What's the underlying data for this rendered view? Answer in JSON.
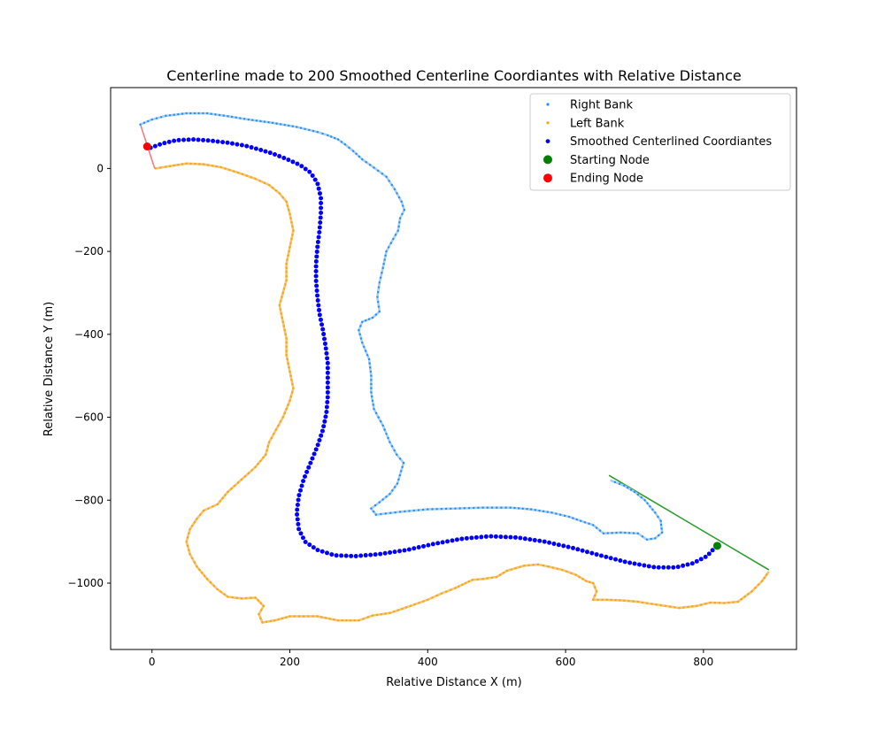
{
  "chart_data": {
    "type": "scatter",
    "title": "Centerline made to 200 Smoothed Centerline Coordiantes with Relative Distance",
    "xlabel": "Relative Distance X (m)",
    "ylabel": "Relative Distance Y (m)",
    "xlim": [
      -60,
      935
    ],
    "ylim": [
      -1160,
      195
    ],
    "x_ticks": [
      0,
      200,
      400,
      600,
      800
    ],
    "y_ticks": [
      0,
      -200,
      -400,
      -600,
      -800,
      -1000
    ],
    "grid": false,
    "legend_position": "top-right",
    "legend": [
      {
        "label": "Right Bank",
        "color": "#1e90ff",
        "marker": "small-dot"
      },
      {
        "label": "Left Bank",
        "color": "#ffa500",
        "marker": "small-dot"
      },
      {
        "label": "Smoothed Centerlined Coordiantes",
        "color": "#0000ff",
        "marker": "dot"
      },
      {
        "label": "Starting Node",
        "color": "#008000",
        "marker": "large-dot"
      },
      {
        "label": "Ending Node",
        "color": "#ff0000",
        "marker": "large-dot"
      }
    ],
    "series": [
      {
        "name": "Right Bank",
        "color": "#1e90ff",
        "line_color": "#a8cdf0",
        "points": [
          [
            -17,
            106
          ],
          [
            0,
            118
          ],
          [
            20,
            127
          ],
          [
            50,
            133
          ],
          [
            80,
            133
          ],
          [
            110,
            126
          ],
          [
            140,
            118
          ],
          [
            175,
            110
          ],
          [
            210,
            100
          ],
          [
            240,
            88
          ],
          [
            255,
            80
          ],
          [
            270,
            70
          ],
          [
            280,
            58
          ],
          [
            292,
            42
          ],
          [
            305,
            22
          ],
          [
            322,
            2
          ],
          [
            340,
            -20
          ],
          [
            352,
            -50
          ],
          [
            362,
            -80
          ],
          [
            366,
            -100
          ],
          [
            360,
            -120
          ],
          [
            357,
            -150
          ],
          [
            350,
            -170
          ],
          [
            340,
            -200
          ],
          [
            335,
            -240
          ],
          [
            330,
            -275
          ],
          [
            327,
            -310
          ],
          [
            330,
            -345
          ],
          [
            320,
            -360
          ],
          [
            305,
            -370
          ],
          [
            300,
            -390
          ],
          [
            305,
            -420
          ],
          [
            315,
            -460
          ],
          [
            318,
            -500
          ],
          [
            318,
            -540
          ],
          [
            322,
            -580
          ],
          [
            335,
            -620
          ],
          [
            345,
            -660
          ],
          [
            355,
            -690
          ],
          [
            365,
            -710
          ],
          [
            356,
            -760
          ],
          [
            345,
            -785
          ],
          [
            330,
            -805
          ],
          [
            318,
            -820
          ],
          [
            325,
            -835
          ],
          [
            360,
            -828
          ],
          [
            400,
            -822
          ],
          [
            440,
            -820
          ],
          [
            480,
            -818
          ],
          [
            520,
            -818
          ],
          [
            550,
            -822
          ],
          [
            580,
            -830
          ],
          [
            605,
            -840
          ],
          [
            622,
            -850
          ],
          [
            640,
            -860
          ],
          [
            655,
            -880
          ],
          [
            680,
            -878
          ],
          [
            705,
            -880
          ],
          [
            718,
            -895
          ],
          [
            730,
            -892
          ],
          [
            740,
            -878
          ],
          [
            738,
            -850
          ],
          [
            730,
            -830
          ],
          [
            715,
            -800
          ],
          [
            700,
            -780
          ],
          [
            685,
            -765
          ],
          [
            665,
            -752
          ]
        ]
      },
      {
        "name": "Left Bank",
        "color": "#ffa500",
        "line_color": "#f2c37a",
        "points": [
          [
            5,
            0
          ],
          [
            20,
            4
          ],
          [
            50,
            12
          ],
          [
            75,
            10
          ],
          [
            100,
            3
          ],
          [
            125,
            -10
          ],
          [
            150,
            -25
          ],
          [
            170,
            -40
          ],
          [
            185,
            -60
          ],
          [
            195,
            -80
          ],
          [
            200,
            -110
          ],
          [
            205,
            -150
          ],
          [
            200,
            -190
          ],
          [
            195,
            -230
          ],
          [
            195,
            -270
          ],
          [
            190,
            -300
          ],
          [
            185,
            -330
          ],
          [
            190,
            -370
          ],
          [
            195,
            -410
          ],
          [
            195,
            -450
          ],
          [
            200,
            -490
          ],
          [
            205,
            -530
          ],
          [
            200,
            -560
          ],
          [
            190,
            -600
          ],
          [
            180,
            -630
          ],
          [
            170,
            -660
          ],
          [
            165,
            -690
          ],
          [
            150,
            -720
          ],
          [
            130,
            -750
          ],
          [
            110,
            -780
          ],
          [
            95,
            -810
          ],
          [
            75,
            -825
          ],
          [
            65,
            -845
          ],
          [
            55,
            -870
          ],
          [
            50,
            -900
          ],
          [
            55,
            -930
          ],
          [
            65,
            -960
          ],
          [
            80,
            -990
          ],
          [
            95,
            -1015
          ],
          [
            110,
            -1033
          ],
          [
            130,
            -1037
          ],
          [
            150,
            -1035
          ],
          [
            162,
            -1055
          ],
          [
            155,
            -1075
          ],
          [
            160,
            -1095
          ],
          [
            178,
            -1090
          ],
          [
            200,
            -1080
          ],
          [
            240,
            -1080
          ],
          [
            270,
            -1090
          ],
          [
            300,
            -1090
          ],
          [
            320,
            -1078
          ],
          [
            345,
            -1072
          ],
          [
            375,
            -1055
          ],
          [
            400,
            -1040
          ],
          [
            420,
            -1025
          ],
          [
            440,
            -1012
          ],
          [
            455,
            -1000
          ],
          [
            465,
            -992
          ],
          [
            480,
            -990
          ],
          [
            500,
            -985
          ],
          [
            515,
            -970
          ],
          [
            540,
            -958
          ],
          [
            560,
            -955
          ],
          [
            575,
            -960
          ],
          [
            595,
            -968
          ],
          [
            615,
            -980
          ],
          [
            630,
            -995
          ],
          [
            640,
            -1000
          ],
          [
            645,
            -1020
          ],
          [
            640,
            -1040
          ],
          [
            660,
            -1040
          ],
          [
            685,
            -1042
          ],
          [
            705,
            -1045
          ],
          [
            725,
            -1050
          ],
          [
            745,
            -1055
          ],
          [
            765,
            -1060
          ],
          [
            790,
            -1055
          ],
          [
            810,
            -1047
          ],
          [
            830,
            -1048
          ],
          [
            850,
            -1045
          ],
          [
            870,
            -1020
          ],
          [
            885,
            -995
          ],
          [
            895,
            -972
          ]
        ]
      },
      {
        "name": "Smoothed Centerlined Coordiantes",
        "color": "#0000ff",
        "points": [
          [
            -2,
            50
          ],
          [
            15,
            60
          ],
          [
            35,
            68
          ],
          [
            60,
            70
          ],
          [
            85,
            67
          ],
          [
            110,
            62
          ],
          [
            135,
            55
          ],
          [
            155,
            46
          ],
          [
            175,
            36
          ],
          [
            195,
            23
          ],
          [
            215,
            8
          ],
          [
            230,
            -10
          ],
          [
            240,
            -35
          ],
          [
            245,
            -70
          ],
          [
            245,
            -110
          ],
          [
            243,
            -150
          ],
          [
            240,
            -190
          ],
          [
            238,
            -230
          ],
          [
            238,
            -270
          ],
          [
            240,
            -310
          ],
          [
            243,
            -350
          ],
          [
            248,
            -390
          ],
          [
            252,
            -430
          ],
          [
            255,
            -470
          ],
          [
            255,
            -510
          ],
          [
            255,
            -550
          ],
          [
            253,
            -590
          ],
          [
            248,
            -630
          ],
          [
            240,
            -670
          ],
          [
            230,
            -710
          ],
          [
            220,
            -750
          ],
          [
            213,
            -790
          ],
          [
            210,
            -830
          ],
          [
            213,
            -870
          ],
          [
            222,
            -900
          ],
          [
            240,
            -920
          ],
          [
            265,
            -933
          ],
          [
            295,
            -935
          ],
          [
            330,
            -930
          ],
          [
            370,
            -920
          ],
          [
            410,
            -905
          ],
          [
            450,
            -893
          ],
          [
            490,
            -887
          ],
          [
            530,
            -890
          ],
          [
            570,
            -900
          ],
          [
            610,
            -915
          ],
          [
            650,
            -933
          ],
          [
            690,
            -950
          ],
          [
            730,
            -962
          ],
          [
            760,
            -962
          ],
          [
            785,
            -952
          ],
          [
            805,
            -935
          ],
          [
            818,
            -912
          ]
        ],
        "count": 200
      },
      {
        "name": "Starting Node",
        "color": "#008000",
        "points": [
          [
            820,
            -910
          ]
        ]
      },
      {
        "name": "Ending Node",
        "color": "#ff0000",
        "points": [
          [
            -7,
            53
          ]
        ]
      }
    ],
    "connector_lines": [
      {
        "color": "#2ca02c",
        "points": [
          [
            663,
            -740
          ],
          [
            895,
            -968
          ]
        ]
      },
      {
        "color": "#f08080",
        "points": [
          [
            -17,
            107
          ],
          [
            4,
            0
          ]
        ]
      },
      {
        "color": "#d3d3d3",
        "points": [
          [
            525,
            -818
          ],
          [
            580,
            -830
          ]
        ]
      }
    ]
  }
}
